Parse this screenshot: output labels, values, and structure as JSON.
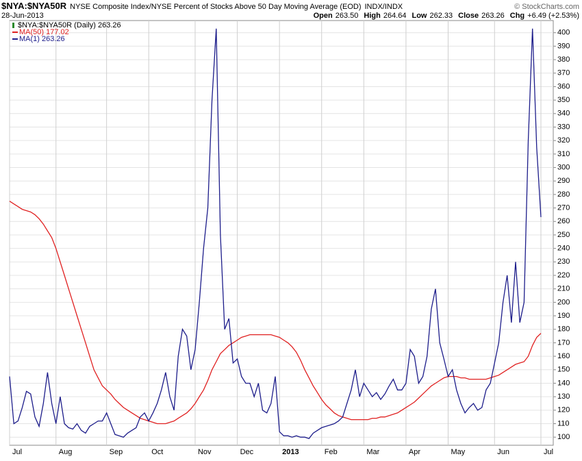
{
  "header": {
    "symbol": "$NYA:$NYA50R",
    "description": "NYSE Composite Index/NYSE Percent of Stocks Above 50 Day Moving Average (EOD)",
    "exchange": "INDX/INDX",
    "copyright": "© StockCharts.com",
    "date": "28-Jun-2013",
    "quote": [
      {
        "label": "Open",
        "value": "263.50"
      },
      {
        "label": "High",
        "value": "264.64"
      },
      {
        "label": "Low",
        "value": "262.33"
      },
      {
        "label": "Close",
        "value": "263.26"
      },
      {
        "label": "Chg",
        "value": "+6.49 (+2.53%)"
      }
    ]
  },
  "chart_data": {
    "type": "line",
    "legend_title": "$NYA:$NYA50R (Daily) 263.26",
    "legend": "top-left",
    "grid": true,
    "categories": [
      "Jul",
      null,
      null,
      null,
      null,
      null,
      null,
      null,
      null,
      null,
      null,
      "Aug",
      null,
      null,
      null,
      null,
      null,
      null,
      null,
      null,
      null,
      null,
      null,
      "Sep",
      null,
      null,
      null,
      null,
      null,
      null,
      null,
      null,
      null,
      "Oct",
      null,
      null,
      null,
      null,
      null,
      null,
      null,
      null,
      null,
      null,
      "Nov",
      null,
      null,
      null,
      null,
      null,
      null,
      null,
      null,
      null,
      "Dec",
      null,
      null,
      null,
      null,
      null,
      null,
      null,
      null,
      null,
      "2013",
      null,
      null,
      null,
      null,
      null,
      null,
      null,
      null,
      null,
      "Feb",
      null,
      null,
      null,
      null,
      null,
      null,
      null,
      null,
      null,
      "Mar",
      null,
      null,
      null,
      null,
      null,
      null,
      null,
      null,
      null,
      "Apr",
      null,
      null,
      null,
      null,
      null,
      null,
      null,
      null,
      null,
      "May",
      null,
      null,
      null,
      null,
      null,
      null,
      null,
      null,
      null,
      null,
      "Jun",
      null,
      null,
      null,
      null,
      null,
      null,
      null,
      null,
      null,
      null,
      "Jul"
    ],
    "ylim": [
      94,
      409
    ],
    "yticks": [
      100,
      110,
      120,
      130,
      140,
      150,
      160,
      170,
      180,
      190,
      200,
      210,
      220,
      230,
      240,
      250,
      260,
      270,
      280,
      290,
      300,
      310,
      320,
      330,
      340,
      350,
      360,
      370,
      380,
      390,
      400
    ],
    "series": [
      {
        "name": "MA(50) 177.02",
        "color": "#e02020",
        "values": [
          275,
          273,
          271,
          269,
          268,
          267,
          265,
          262,
          258,
          253,
          248,
          240,
          230,
          220,
          210,
          200,
          190,
          180,
          170,
          160,
          150,
          144,
          138,
          135,
          132,
          128,
          125,
          122,
          120,
          118,
          116,
          114,
          113,
          112,
          111,
          110,
          110,
          110,
          111,
          112,
          114,
          116,
          118,
          121,
          125,
          130,
          135,
          142,
          150,
          156,
          162,
          165,
          168,
          170,
          172,
          174,
          175,
          176,
          176,
          176,
          176,
          176,
          176,
          175,
          174,
          172,
          170,
          167,
          163,
          157,
          150,
          144,
          138,
          133,
          128,
          124,
          121,
          118,
          116,
          115,
          114,
          113,
          113,
          113,
          113,
          113,
          114,
          114,
          115,
          115,
          116,
          117,
          118,
          120,
          122,
          124,
          126,
          129,
          132,
          135,
          138,
          140,
          142,
          144,
          145,
          145,
          145,
          144,
          144,
          143,
          143,
          143,
          143,
          143,
          144,
          145,
          146,
          148,
          150,
          152,
          154,
          155,
          156,
          160,
          168,
          174,
          177.02
        ]
      },
      {
        "name": "MA(1) 263.26",
        "color": "#1c1c8a",
        "values": [
          145,
          110,
          112,
          122,
          134,
          132,
          115,
          108,
          125,
          148,
          125,
          110,
          130,
          110,
          107,
          106,
          110,
          105,
          103,
          108,
          110,
          112,
          112,
          118,
          110,
          102,
          101,
          100,
          103,
          105,
          107,
          115,
          118,
          112,
          118,
          125,
          135,
          148,
          130,
          120,
          160,
          180,
          175,
          150,
          165,
          200,
          240,
          270,
          350,
          403,
          250,
          180,
          188,
          155,
          158,
          145,
          140,
          140,
          130,
          140,
          120,
          118,
          125,
          145,
          104,
          101,
          101,
          100,
          101,
          100,
          100,
          99,
          103,
          105,
          107,
          108,
          109,
          110,
          112,
          115,
          125,
          135,
          150,
          130,
          140,
          135,
          130,
          133,
          128,
          132,
          138,
          143,
          135,
          135,
          140,
          165,
          160,
          140,
          145,
          160,
          195,
          210,
          170,
          158,
          145,
          150,
          135,
          125,
          118,
          122,
          125,
          120,
          122,
          135,
          140,
          155,
          170,
          200,
          220,
          185,
          230,
          185,
          200,
          320,
          403,
          315,
          263.26
        ]
      }
    ]
  }
}
